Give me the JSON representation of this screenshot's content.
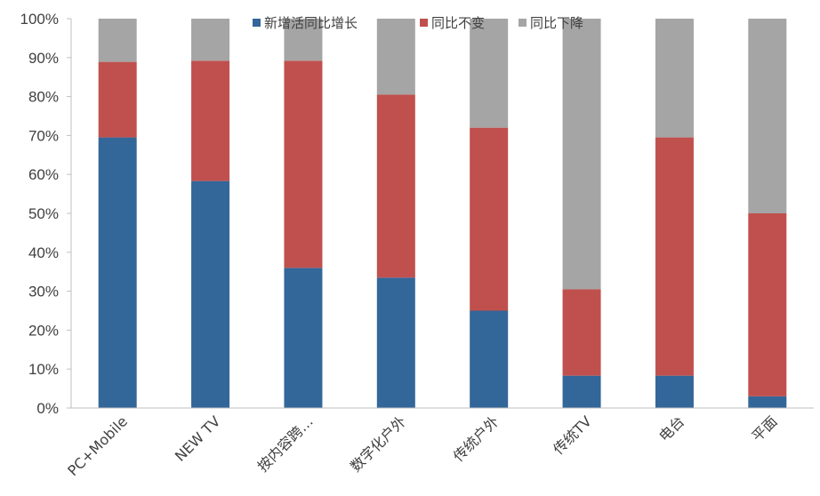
{
  "chart_data": {
    "type": "bar",
    "stacked": true,
    "categories": [
      "PC+Mobile",
      "NEW TV",
      "按内容跨…",
      "数字化户外",
      "传统户外",
      "传统TV",
      "电台",
      "平面"
    ],
    "series": [
      {
        "name": "新增活同比增长",
        "color": "#336699",
        "values": [
          69.5,
          58.3,
          36.0,
          33.5,
          25.0,
          8.3,
          8.3,
          3.0
        ]
      },
      {
        "name": "同比不变",
        "color": "#C0504D",
        "values": [
          19.4,
          30.9,
          53.2,
          47.0,
          47.0,
          22.2,
          61.2,
          47.0
        ]
      },
      {
        "name": "同比下降",
        "color": "#A5A5A5",
        "values": [
          11.1,
          10.8,
          10.8,
          19.5,
          28.0,
          69.5,
          30.5,
          50.0
        ]
      }
    ],
    "y_ticks": [
      "0%",
      "10%",
      "20%",
      "30%",
      "40%",
      "50%",
      "60%",
      "70%",
      "80%",
      "90%",
      "100%"
    ],
    "ylim": [
      0,
      100
    ],
    "legend_position": "top",
    "grid": false
  }
}
